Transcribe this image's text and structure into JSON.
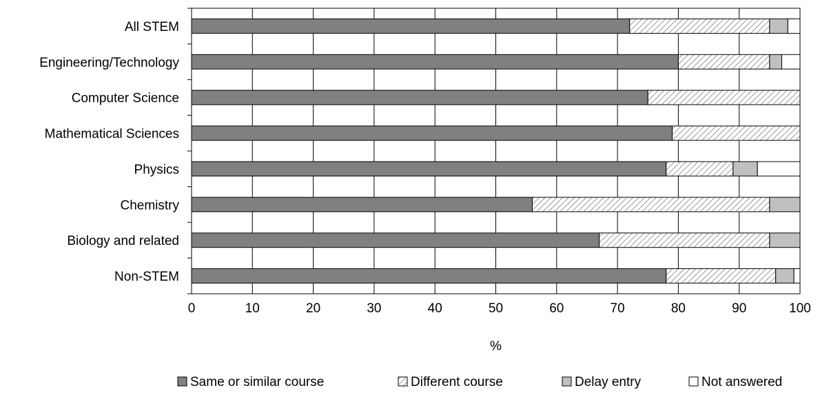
{
  "chart_data": {
    "type": "bar",
    "orientation": "horizontal",
    "stacked": true,
    "title": "",
    "xlabel": "%",
    "ylabel": "",
    "xlim": [
      0,
      100
    ],
    "x_ticks": [
      "0",
      "10",
      "20",
      "30",
      "40",
      "50",
      "60",
      "70",
      "80",
      "90",
      "100"
    ],
    "grid": "vertical",
    "legend_position": "bottom",
    "categories": [
      "All STEM",
      "Engineering/Technology",
      "Computer Science",
      "Mathematical Sciences",
      "Physics",
      "Chemistry",
      "Biology and related",
      "Non-STEM"
    ],
    "series": [
      {
        "name": "Same or similar course",
        "pattern": "solid",
        "color": "#808080",
        "values": [
          72,
          80,
          75,
          79,
          78,
          56,
          67,
          78
        ]
      },
      {
        "name": "Different course",
        "pattern": "diagonal-hatch",
        "color": "#ffffff",
        "values": [
          23,
          15,
          25,
          21,
          11,
          39,
          28,
          18
        ]
      },
      {
        "name": "Delay entry",
        "pattern": "solid",
        "color": "#c0c0c0",
        "values": [
          3,
          2,
          0,
          0,
          4,
          5,
          5,
          3
        ]
      },
      {
        "name": "Not answered",
        "pattern": "solid",
        "color": "#ffffff",
        "values": [
          2,
          3,
          0,
          0,
          7,
          0,
          0,
          1
        ]
      }
    ]
  }
}
